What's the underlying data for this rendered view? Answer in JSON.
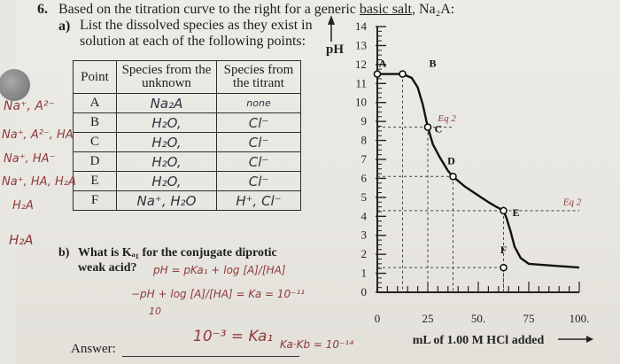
{
  "question": {
    "number": "6.",
    "prompt_start": "Based on the titration curve to the right for a generic ",
    "prompt_underlined": "basic salt",
    "prompt_formula": ", Na₂A:",
    "part_a_label": "a)",
    "part_a_line1": "List the dissolved species as they exist in",
    "part_a_line2": "solution at each of the following points:",
    "part_b_label": "b)",
    "part_b_line1": "What is Kₐ₁ for the conjugate diprotic",
    "part_b_line2": "weak acid?",
    "answer_label": "Answer:"
  },
  "table": {
    "headers": [
      "Point",
      "Species from the unknown",
      "Species from the titrant"
    ],
    "rows": [
      {
        "point": "A",
        "unknown": "Na₂A",
        "titrant": "none"
      },
      {
        "point": "B",
        "unknown": "H₂O,",
        "titrant": "Cl⁻"
      },
      {
        "point": "C",
        "unknown": "H₂O,",
        "titrant": "Cl⁻"
      },
      {
        "point": "D",
        "unknown": "H₂O,",
        "titrant": "Cl⁻"
      },
      {
        "point": "E",
        "unknown": "H₂O,",
        "titrant": "Cl⁻"
      },
      {
        "point": "F",
        "unknown": "Na⁺, H₂O",
        "titrant": "H⁺, Cl⁻"
      }
    ]
  },
  "margin_notes": [
    "Na⁺, A²⁻",
    "Na⁺, A²⁻, HA",
    "Na⁺, HA⁻",
    "Na⁺, HA, H₂A",
    "H₂A",
    "H₂A"
  ],
  "handwriting": {
    "pka_line1": "pH = pKa₁ + log [A]/[HA]",
    "pka_line2": "−pH + log [A]/[HA] = Ka = 10⁻¹¹",
    "pka_ten": "10",
    "answer": "10⁻³ = Ka₁",
    "answer_2": "Ka·Kb = 10⁻¹⁴",
    "eq2_near_c": "Eq 2",
    "eq2_near_e": "Eq 2"
  },
  "chart_data": {
    "type": "line",
    "ylabel": "pH",
    "xlabel": "mL of 1.00 M HCl added",
    "ylim": [
      0,
      14
    ],
    "xlim": [
      0,
      100
    ],
    "yticks": [
      "0",
      "1",
      "2",
      "3",
      "4",
      "5",
      "6",
      "7",
      "8",
      "9",
      "10",
      "11",
      "12",
      "13",
      "14"
    ],
    "xticks": [
      "0",
      "25",
      "50.",
      "75",
      "100."
    ],
    "points": [
      {
        "label": "A",
        "x": 0,
        "y": 11.5
      },
      {
        "label": "B",
        "x": 12.5,
        "y": 11.5
      },
      {
        "label": "C",
        "x": 25,
        "y": 8.7
      },
      {
        "label": "D",
        "x": 37.5,
        "y": 6.1
      },
      {
        "label": "E",
        "x": 62.5,
        "y": 4.3
      },
      {
        "label": "F",
        "x": 62.5,
        "y": 1.3
      }
    ],
    "curve": [
      [
        0,
        11.5
      ],
      [
        12.5,
        11.5
      ],
      [
        17,
        11.3
      ],
      [
        20,
        10.8
      ],
      [
        22.5,
        9.9
      ],
      [
        25,
        8.7
      ],
      [
        27.5,
        7.8
      ],
      [
        31,
        7.1
      ],
      [
        35,
        6.4
      ],
      [
        37.5,
        6.1
      ],
      [
        43,
        5.6
      ],
      [
        50,
        5.1
      ],
      [
        55,
        4.75
      ],
      [
        59,
        4.5
      ],
      [
        62.5,
        4.3
      ],
      [
        64,
        3.9
      ],
      [
        66,
        3.2
      ],
      [
        68,
        2.4
      ],
      [
        71,
        1.8
      ],
      [
        75,
        1.5
      ],
      [
        100,
        1.3
      ]
    ],
    "grid": "dashed guides at points"
  }
}
